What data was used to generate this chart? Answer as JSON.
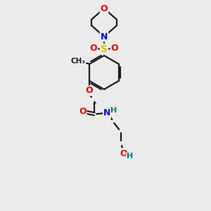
{
  "bg_color": "#ebebeb",
  "bond_color": "#1a1a1a",
  "atom_colors": {
    "O": "#ff0000",
    "N": "#0000ff",
    "S": "#cccc00",
    "H": "#008080"
  },
  "figsize": [
    3.0,
    3.0
  ],
  "dpi": 100
}
